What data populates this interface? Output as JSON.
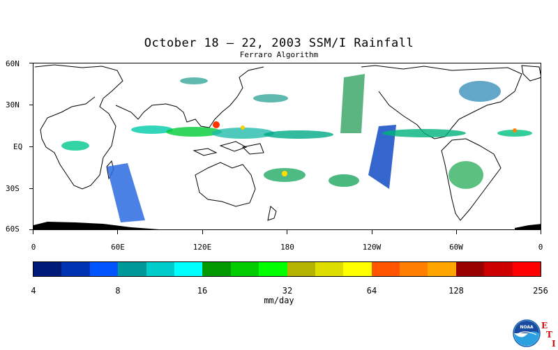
{
  "title": "October 18 – 22, 2003 SSM/I Rainfall",
  "subtitle": "Ferraro Algorithm",
  "lat_labels": [
    "60N",
    "30N",
    "EQ",
    "30S",
    "60S"
  ],
  "lon_labels": [
    "0",
    "60E",
    "120E",
    "180",
    "120W",
    "60W",
    "0"
  ],
  "colorbar": {
    "colors": [
      "#001a7a",
      "#0033b3",
      "#0055ff",
      "#00999a",
      "#00cccc",
      "#00ffff",
      "#009900",
      "#00cc00",
      "#00ff00",
      "#b3b300",
      "#dddd00",
      "#ffff00",
      "#ff5500",
      "#ff8000",
      "#ffa500",
      "#990000",
      "#cc0000",
      "#ff0000"
    ],
    "tick_labels": [
      "4",
      "8",
      "16",
      "32",
      "64",
      "128",
      "256"
    ],
    "units": "mm/day"
  },
  "logo": {
    "text": "NOAA",
    "icon": "noaa-logo-icon"
  },
  "eti": {
    "letters": [
      "E",
      "T",
      "I"
    ],
    "color": "#d01010"
  }
}
